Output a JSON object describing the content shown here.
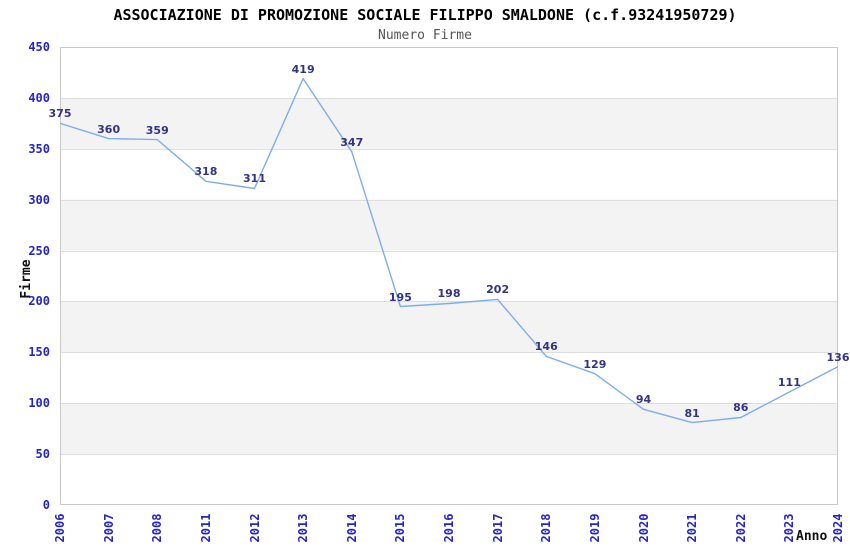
{
  "chart_data": {
    "type": "line",
    "title": "ASSOCIAZIONE DI PROMOZIONE SOCIALE FILIPPO SMALDONE (c.f.93241950729)",
    "subtitle": "Numero Firme",
    "xlabel": "Anno",
    "ylabel": "Firme",
    "categories": [
      "2006",
      "2007",
      "2008",
      "2011",
      "2012",
      "2013",
      "2014",
      "2015",
      "2016",
      "2017",
      "2018",
      "2019",
      "2020",
      "2021",
      "2022",
      "2023",
      "2024"
    ],
    "values": [
      375,
      360,
      359,
      318,
      311,
      419,
      347,
      195,
      198,
      202,
      146,
      129,
      94,
      81,
      86,
      111,
      136
    ],
    "ylim": [
      0,
      450
    ],
    "y_ticks": [
      0,
      50,
      100,
      150,
      200,
      250,
      300,
      350,
      400,
      450
    ],
    "grid": "horizontal gridlines every 50 with alternating shaded bands",
    "legend_position": "none",
    "markers": "none",
    "data_labels": "above each point",
    "colors": {
      "line": "#7fadea",
      "tick_label": "#2424cc",
      "data_label": "#333384",
      "band": "#f3f3f3",
      "gridline": "#dedede",
      "border": "#c9c9c9",
      "title": "#000000",
      "subtitle": "#555555",
      "axis_title": "#111111",
      "background": "#ffffff"
    }
  }
}
